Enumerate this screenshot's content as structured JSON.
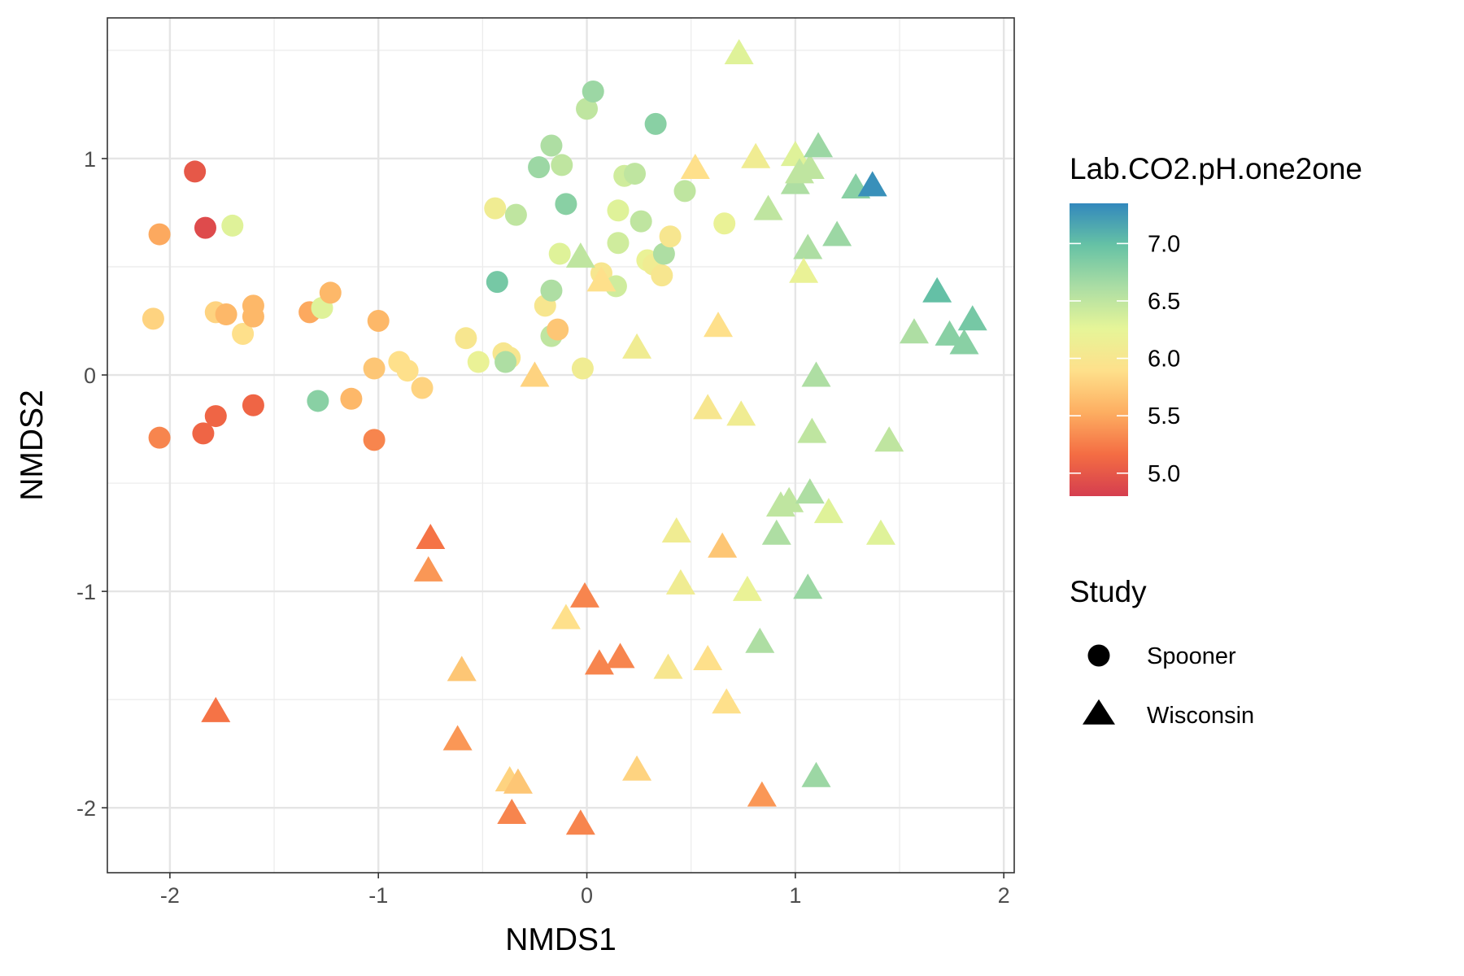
{
  "chart_data": {
    "type": "scatter",
    "xlabel": "NMDS1",
    "ylabel": "NMDS2",
    "xlim": [
      -2.3,
      2.05
    ],
    "ylim": [
      -2.3,
      1.65
    ],
    "x_ticks": [
      -2,
      -1,
      0,
      1,
      2
    ],
    "y_ticks": [
      -2,
      -1,
      0,
      1
    ],
    "x_tick_labels": [
      "-2",
      "-1",
      "0",
      "1",
      "2"
    ],
    "y_tick_labels": [
      "-2",
      "-1",
      "0",
      "1"
    ],
    "grid": true,
    "color_legend": {
      "title": "Lab.CO2.pH.one2one",
      "min": 4.8,
      "max": 7.35,
      "ticks": [
        5.0,
        5.5,
        6.0,
        6.5,
        7.0
      ],
      "tick_labels": [
        "5.0",
        "5.5",
        "6.0",
        "6.5",
        "7.0"
      ],
      "palette": [
        "#D53E4F",
        "#F46D43",
        "#FDAE61",
        "#FEE08B",
        "#E6F598",
        "#ABDDA4",
        "#66C2A5",
        "#3288BD"
      ]
    },
    "shape_legend": {
      "title": "Study",
      "entries": [
        {
          "label": "Spooner",
          "shape": "circle"
        },
        {
          "label": "Wisconsin",
          "shape": "triangle"
        }
      ]
    },
    "series": [
      {
        "name": "Spooner",
        "shape": "circle",
        "points": [
          [
            -1.88,
            0.94,
            5.0
          ],
          [
            -1.83,
            0.68,
            4.9
          ],
          [
            -1.7,
            0.69,
            6.3
          ],
          [
            -2.05,
            0.65,
            5.5
          ],
          [
            -2.08,
            0.26,
            5.8
          ],
          [
            -1.78,
            0.29,
            5.8
          ],
          [
            -1.73,
            0.28,
            5.6
          ],
          [
            -1.65,
            0.19,
            5.9
          ],
          [
            -1.6,
            0.32,
            5.6
          ],
          [
            -1.6,
            0.27,
            5.6
          ],
          [
            -1.33,
            0.29,
            5.5
          ],
          [
            -1.27,
            0.31,
            6.3
          ],
          [
            -1.23,
            0.38,
            5.6
          ],
          [
            -1.29,
            -0.12,
            6.8
          ],
          [
            -1.13,
            -0.11,
            5.6
          ],
          [
            -1.0,
            0.25,
            5.6
          ],
          [
            -1.02,
            -0.3,
            5.3
          ],
          [
            -1.02,
            0.03,
            5.7
          ],
          [
            -0.9,
            0.06,
            5.9
          ],
          [
            -0.86,
            0.02,
            5.9
          ],
          [
            -0.79,
            -0.06,
            5.8
          ],
          [
            -2.05,
            -0.29,
            5.3
          ],
          [
            -1.84,
            -0.27,
            5.1
          ],
          [
            -1.78,
            -0.19,
            5.1
          ],
          [
            -1.6,
            -0.14,
            5.1
          ],
          [
            -0.58,
            0.17,
            6.0
          ],
          [
            -0.52,
            0.06,
            6.2
          ],
          [
            -0.44,
            0.77,
            6.1
          ],
          [
            -0.4,
            0.1,
            6.0
          ],
          [
            -0.37,
            0.08,
            6.0
          ],
          [
            -0.39,
            0.06,
            6.6
          ],
          [
            -0.43,
            0.43,
            6.9
          ],
          [
            -0.34,
            0.74,
            6.5
          ],
          [
            -0.2,
            0.32,
            6.0
          ],
          [
            -0.17,
            0.18,
            6.5
          ],
          [
            -0.17,
            0.39,
            6.6
          ],
          [
            -0.14,
            0.21,
            5.7
          ],
          [
            -0.13,
            0.56,
            6.3
          ],
          [
            -0.17,
            1.06,
            6.6
          ],
          [
            -0.23,
            0.96,
            6.7
          ],
          [
            -0.12,
            0.97,
            6.5
          ],
          [
            -0.1,
            0.79,
            6.8
          ],
          [
            -0.02,
            0.03,
            6.1
          ],
          [
            0.0,
            1.23,
            6.5
          ],
          [
            0.03,
            1.31,
            6.7
          ],
          [
            0.07,
            0.47,
            6.0
          ],
          [
            0.14,
            0.41,
            6.4
          ],
          [
            0.15,
            0.61,
            6.4
          ],
          [
            0.15,
            0.76,
            6.3
          ],
          [
            0.18,
            0.92,
            6.4
          ],
          [
            0.23,
            0.93,
            6.5
          ],
          [
            0.26,
            0.71,
            6.5
          ],
          [
            0.29,
            0.53,
            6.2
          ],
          [
            0.32,
            0.51,
            6.1
          ],
          [
            0.36,
            0.46,
            6.0
          ],
          [
            0.37,
            0.56,
            6.6
          ],
          [
            0.4,
            0.64,
            6.0
          ],
          [
            0.33,
            1.16,
            6.8
          ],
          [
            0.47,
            0.85,
            6.5
          ],
          [
            0.66,
            0.7,
            6.2
          ]
        ]
      },
      {
        "name": "Wisconsin",
        "shape": "triangle",
        "points": [
          [
            -0.75,
            -0.76,
            5.2
          ],
          [
            -0.76,
            -0.91,
            5.4
          ],
          [
            -1.78,
            -1.56,
            5.2
          ],
          [
            -0.6,
            -1.37,
            5.7
          ],
          [
            -0.62,
            -1.69,
            5.4
          ],
          [
            -0.37,
            -1.88,
            5.8
          ],
          [
            -0.33,
            -1.89,
            5.7
          ],
          [
            -0.36,
            -2.03,
            5.3
          ],
          [
            -0.03,
            -2.08,
            5.3
          ],
          [
            -0.1,
            -1.13,
            5.9
          ],
          [
            -0.01,
            -1.03,
            5.3
          ],
          [
            0.06,
            -1.34,
            5.3
          ],
          [
            0.16,
            -1.31,
            5.3
          ],
          [
            0.24,
            -1.83,
            5.8
          ],
          [
            0.39,
            -1.36,
            6.0
          ],
          [
            0.43,
            -0.73,
            6.1
          ],
          [
            0.45,
            -0.97,
            6.1
          ],
          [
            0.58,
            -1.32,
            5.9
          ],
          [
            0.67,
            -1.52,
            5.9
          ],
          [
            0.65,
            -0.8,
            5.7
          ],
          [
            0.77,
            -1.0,
            6.2
          ],
          [
            0.84,
            -1.95,
            5.4
          ],
          [
            0.83,
            -1.24,
            6.6
          ],
          [
            0.91,
            -0.74,
            6.6
          ],
          [
            0.93,
            -0.61,
            6.5
          ],
          [
            0.97,
            -0.59,
            6.5
          ],
          [
            1.06,
            -0.99,
            6.7
          ],
          [
            1.07,
            -0.55,
            6.6
          ],
          [
            1.08,
            -0.27,
            6.5
          ],
          [
            1.1,
            -0.01,
            6.6
          ],
          [
            1.1,
            -1.86,
            6.7
          ],
          [
            1.16,
            -0.64,
            6.3
          ],
          [
            1.41,
            -0.74,
            6.3
          ],
          [
            1.45,
            -0.31,
            6.5
          ],
          [
            0.58,
            -0.16,
            6.0
          ],
          [
            0.74,
            -0.19,
            6.1
          ],
          [
            -0.25,
            -0.01,
            5.8
          ],
          [
            0.24,
            0.12,
            6.1
          ],
          [
            0.63,
            0.22,
            5.9
          ],
          [
            0.07,
            0.43,
            5.9
          ],
          [
            -0.03,
            0.54,
            6.5
          ],
          [
            0.52,
            0.95,
            5.9
          ],
          [
            0.73,
            1.48,
            6.3
          ],
          [
            0.81,
            1.0,
            6.1
          ],
          [
            1.0,
            1.01,
            6.3
          ],
          [
            0.87,
            0.76,
            6.5
          ],
          [
            1.0,
            0.88,
            6.6
          ],
          [
            1.02,
            0.93,
            6.5
          ],
          [
            1.07,
            0.95,
            6.5
          ],
          [
            1.11,
            1.05,
            6.7
          ],
          [
            1.29,
            0.86,
            6.8
          ],
          [
            1.37,
            0.87,
            7.3
          ],
          [
            1.2,
            0.64,
            6.7
          ],
          [
            1.06,
            0.58,
            6.6
          ],
          [
            1.04,
            0.47,
            6.2
          ],
          [
            1.57,
            0.19,
            6.6
          ],
          [
            1.68,
            0.38,
            7.0
          ],
          [
            1.74,
            0.18,
            6.8
          ],
          [
            1.81,
            0.14,
            6.8
          ],
          [
            1.85,
            0.25,
            6.9
          ]
        ]
      }
    ]
  }
}
